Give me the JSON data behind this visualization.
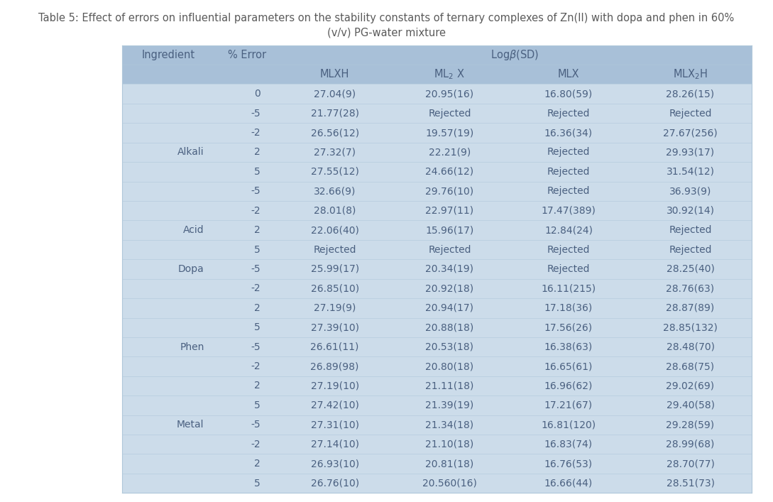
{
  "title_line1": "Table 5: Effect of errors on influential parameters on the stability constants of ternary complexes of Zn(II) with dopa and phen in 60%",
  "title_line2": "(v/v) PG-water mixture",
  "title_color": "#5a5a5a",
  "title_fontsize": 10.5,
  "header_bg": "#a8c0d8",
  "table_bg": "#ccdcea",
  "outer_bg": "#ffffff",
  "text_color": "#4a6080",
  "header_fontsize": 10.5,
  "cell_fontsize": 10.0,
  "rows": [
    [
      "",
      "0",
      "27.04(9)",
      "20.95(16)",
      "16.80(59)",
      "28.26(15)"
    ],
    [
      "",
      "-5",
      "21.77(28)",
      "Rejected",
      "Rejected",
      "Rejected"
    ],
    [
      "",
      "-2",
      "26.56(12)",
      "19.57(19)",
      "16.36(34)",
      "27.67(256)"
    ],
    [
      "Alkali",
      "2",
      "27.32(7)",
      "22.21(9)",
      "Rejected",
      "29.93(17)"
    ],
    [
      "",
      "5",
      "27.55(12)",
      "24.66(12)",
      "Rejected",
      "31.54(12)"
    ],
    [
      "",
      "-5",
      "32.66(9)",
      "29.76(10)",
      "Rejected",
      "36.93(9)"
    ],
    [
      "",
      "-2",
      "28.01(8)",
      "22.97(11)",
      "17.47(389)",
      "30.92(14)"
    ],
    [
      "Acid",
      "2",
      "22.06(40)",
      "15.96(17)",
      "12.84(24)",
      "Rejected"
    ],
    [
      "",
      "5",
      "Rejected",
      "Rejected",
      "Rejected",
      "Rejected"
    ],
    [
      "Dopa",
      "-5",
      "25.99(17)",
      "20.34(19)",
      "Rejected",
      "28.25(40)"
    ],
    [
      "",
      "-2",
      "26.85(10)",
      "20.92(18)",
      "16.11(215)",
      "28.76(63)"
    ],
    [
      "",
      "2",
      "27.19(9)",
      "20.94(17)",
      "17.18(36)",
      "28.87(89)"
    ],
    [
      "",
      "5",
      "27.39(10)",
      "20.88(18)",
      "17.56(26)",
      "28.85(132)"
    ],
    [
      "Phen",
      "-5",
      "26.61(11)",
      "20.53(18)",
      "16.38(63)",
      "28.48(70)"
    ],
    [
      "",
      "-2",
      "26.89(98)",
      "20.80(18)",
      "16.65(61)",
      "28.68(75)"
    ],
    [
      "",
      "2",
      "27.19(10)",
      "21.11(18)",
      "16.96(62)",
      "29.02(69)"
    ],
    [
      "",
      "5",
      "27.42(10)",
      "21.39(19)",
      "17.21(67)",
      "29.40(58)"
    ],
    [
      "Metal",
      "-5",
      "27.31(10)",
      "21.34(18)",
      "16.81(120)",
      "29.28(59)"
    ],
    [
      "",
      "-2",
      "27.14(10)",
      "21.10(18)",
      "16.83(74)",
      "28.99(68)"
    ],
    [
      "",
      "2",
      "26.93(10)",
      "20.81(18)",
      "16.76(53)",
      "28.70(77)"
    ],
    [
      "",
      "5",
      "26.76(10)",
      "20.560(16)",
      "16.66(44)",
      "28.51(73)"
    ]
  ]
}
